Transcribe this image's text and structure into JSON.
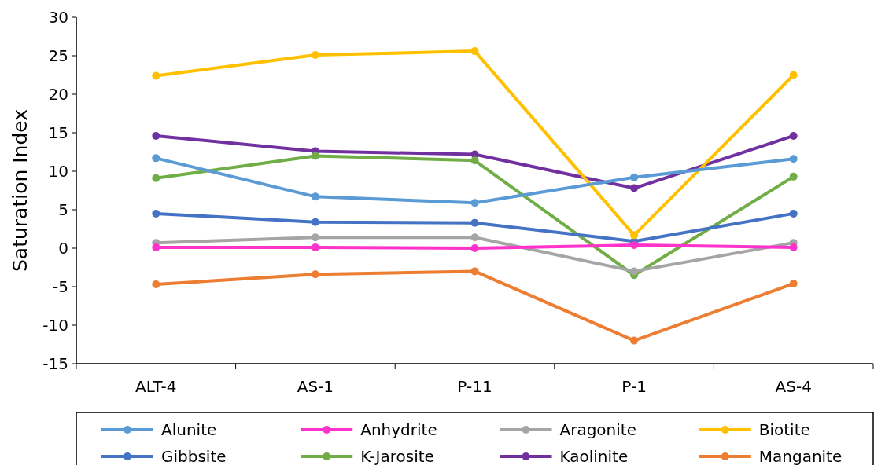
{
  "chart_data": {
    "type": "line",
    "ylabel": "Saturation Index",
    "categories": [
      "ALT-4",
      "AS-1",
      "P-11",
      "P-1",
      "AS-4"
    ],
    "ylim": [
      -15,
      30
    ],
    "yticks": [
      -15,
      -10,
      -5,
      0,
      5,
      10,
      15,
      20,
      25,
      30
    ],
    "grid": false,
    "legend": "bottom",
    "marker": "circle",
    "line_style": "solid",
    "series": [
      {
        "name": "Alunite",
        "color": "#5b9bd5",
        "values": [
          11.7,
          6.7,
          5.9,
          9.2,
          11.6
        ]
      },
      {
        "name": "Anhydrite",
        "color": "#ff33cc",
        "values": [
          0.1,
          0.1,
          0,
          0.4,
          0.1
        ]
      },
      {
        "name": "Aragonite",
        "color": "#a5a5a5",
        "values": [
          0.7,
          1.4,
          1.4,
          -3.0,
          0.7
        ]
      },
      {
        "name": "Biotite",
        "color": "#ffc000",
        "values": [
          22.4,
          25.1,
          25.6,
          1.7,
          22.5
        ]
      },
      {
        "name": "Gibbsite",
        "color": "#4472c4",
        "values": [
          4.5,
          3.4,
          3.3,
          0.9,
          4.5
        ]
      },
      {
        "name": "K-Jarosite",
        "color": "#70ad47",
        "values": [
          9.1,
          12.0,
          11.4,
          -3.5,
          9.3
        ]
      },
      {
        "name": "Kaolinite",
        "color": "#7030a0",
        "values": [
          14.6,
          12.6,
          12.2,
          7.8,
          14.6
        ]
      },
      {
        "name": "Manganite",
        "color": "#ed7d31",
        "values": [
          -4.7,
          -3.4,
          -3.0,
          -12.0,
          -4.6
        ]
      }
    ]
  }
}
